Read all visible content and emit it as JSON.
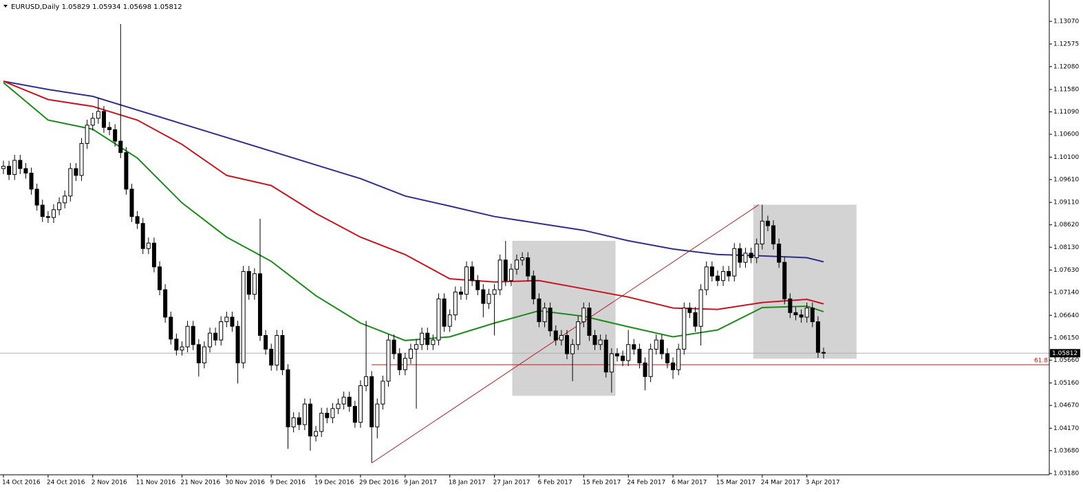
{
  "chart_data": {
    "type": "candlestick",
    "title": "EURUSD,Daily",
    "categories": [
      "14 Oct 2016",
      null,
      null,
      null,
      null,
      null,
      null,
      null,
      "24 Oct 2016",
      null,
      null,
      null,
      null,
      null,
      null,
      null,
      "2 Nov 2016",
      null,
      null,
      null,
      null,
      null,
      null,
      null,
      "11 Nov 2016",
      null,
      null,
      null,
      null,
      null,
      null,
      null,
      "21 Nov 2016",
      null,
      null,
      null,
      null,
      null,
      null,
      null,
      "30 Nov 2016",
      null,
      null,
      null,
      null,
      null,
      null,
      null,
      "9 Dec 2016",
      null,
      null,
      null,
      null,
      null,
      null,
      null,
      "19 Dec 2016",
      null,
      null,
      null,
      null,
      null,
      null,
      null,
      "29 Dec 2016",
      null,
      null,
      null,
      null,
      null,
      null,
      null,
      "9 Jan 2017",
      null,
      null,
      null,
      null,
      null,
      null,
      null,
      "18 Jan 2017",
      null,
      null,
      null,
      null,
      null,
      null,
      null,
      "27 Jan 2017",
      null,
      null,
      null,
      null,
      null,
      null,
      null,
      "6 Feb 2017",
      null,
      null,
      null,
      null,
      null,
      null,
      null,
      "15 Feb 2017",
      null,
      null,
      null,
      null,
      null,
      null,
      null,
      "24 Feb 2017",
      null,
      null,
      null,
      null,
      null,
      null,
      null,
      "6 Mar 2017",
      null,
      null,
      null,
      null,
      null,
      null,
      null,
      "15 Mar 2017",
      null,
      null,
      null,
      null,
      null,
      null,
      null,
      "24 Mar 2017",
      null,
      null,
      null,
      null,
      null,
      null,
      null,
      "3 Apr 2017",
      null,
      null,
      null
    ],
    "open": [
      1.0985,
      1.099,
      1.0972,
      1.1003,
      1.0985,
      1.0975,
      1.094,
      1.0905,
      1.088,
      1.0878,
      1.0895,
      1.091,
      1.0925,
      1.0985,
      1.097,
      1.104,
      1.108,
      1.1095,
      1.111,
      1.1075,
      1.107,
      1.1045,
      1.102,
      1.094,
      1.088,
      1.0865,
      1.081,
      1.0822,
      1.077,
      1.072,
      1.066,
      1.0612,
      1.0588,
      1.0595,
      1.064,
      1.06,
      1.056,
      1.0595,
      1.0625,
      1.061,
      1.065,
      1.066,
      1.064,
      1.056,
      1.076,
      1.071,
      1.0755,
      1.062,
      1.059,
      1.0555,
      1.062,
      1.0545,
      1.042,
      1.044,
      1.0425,
      1.047,
      1.04,
      1.041,
      1.045,
      1.044,
      1.046,
      1.047,
      1.0485,
      1.0465,
      1.043,
      1.051,
      1.053,
      1.042,
      1.047,
      1.052,
      1.061,
      1.058,
      1.0545,
      1.057,
      1.059,
      1.06,
      1.0625,
      1.06,
      1.061,
      1.07,
      1.064,
      1.0665,
      1.0715,
      1.071,
      1.077,
      1.074,
      1.072,
      1.069,
      1.071,
      1.072,
      1.0785,
      1.074,
      1.0765,
      1.0785,
      1.079,
      1.075,
      1.07,
      1.065,
      1.068,
      1.063,
      1.061,
      1.062,
      1.058,
      1.06,
      1.065,
      1.068,
      1.062,
      1.06,
      1.061,
      1.054,
      1.058,
      1.0575,
      1.0565,
      1.06,
      1.059,
      1.056,
      1.053,
      1.059,
      1.061,
      1.058,
      1.056,
      1.0545,
      1.059,
      1.068,
      1.067,
      1.064,
      1.072,
      1.077,
      1.075,
      1.074,
      1.076,
      1.075,
      1.081,
      1.078,
      1.08,
      1.079,
      1.082,
      1.087,
      1.086,
      1.082,
      1.078,
      1.07,
      1.067,
      1.0665,
      1.066,
      1.068,
      1.065,
      1.05829
    ],
    "high": [
      1.1002,
      1.1002,
      1.1015,
      1.1015,
      1.0997,
      1.0987,
      1.0952,
      1.0917,
      1.0892,
      1.0907,
      1.0922,
      1.0937,
      1.0997,
      1.0997,
      1.1052,
      1.1092,
      1.1107,
      1.114,
      1.1122,
      1.1087,
      1.1082,
      1.1301,
      1.1032,
      1.0952,
      1.0892,
      1.0877,
      1.0834,
      1.0834,
      1.0782,
      1.0732,
      1.0672,
      1.0624,
      1.0607,
      1.0652,
      1.0652,
      1.0612,
      1.0607,
      1.0637,
      1.0637,
      1.0662,
      1.0672,
      1.0672,
      1.0652,
      1.0772,
      1.0772,
      1.0767,
      1.0875,
      1.0632,
      1.0602,
      1.0632,
      1.0632,
      1.0557,
      1.0452,
      1.0452,
      1.0482,
      1.0482,
      1.0422,
      1.0462,
      1.0462,
      1.0472,
      1.0482,
      1.0497,
      1.0497,
      1.0477,
      1.0522,
      1.0652,
      1.0542,
      1.0482,
      1.0532,
      1.0622,
      1.0622,
      1.0592,
      1.0582,
      1.0602,
      1.0612,
      1.0637,
      1.0637,
      1.0622,
      1.0712,
      1.0712,
      1.0677,
      1.0727,
      1.0727,
      1.0782,
      1.0782,
      1.0752,
      1.0732,
      1.0722,
      1.0732,
      1.0797,
      1.0827,
      1.0777,
      1.0797,
      1.0802,
      1.0802,
      1.0762,
      1.0712,
      1.0692,
      1.0692,
      1.0642,
      1.0632,
      1.0632,
      1.0612,
      1.0662,
      1.0692,
      1.0692,
      1.0632,
      1.0622,
      1.0622,
      1.0592,
      1.0592,
      1.0587,
      1.0632,
      1.0612,
      1.0602,
      1.0572,
      1.0602,
      1.0622,
      1.0622,
      1.0592,
      1.0572,
      1.0602,
      1.0692,
      1.0692,
      1.0682,
      1.0732,
      1.0782,
      1.0782,
      1.0762,
      1.0772,
      1.0772,
      1.0822,
      1.0822,
      1.0812,
      1.0812,
      1.0832,
      1.0906,
      1.0882,
      1.0872,
      1.0832,
      1.0792,
      1.0712,
      1.0682,
      1.0677,
      1.0692,
      1.0692,
      1.0662,
      1.05934
    ],
    "low": [
      1.0973,
      1.096,
      1.096,
      1.0973,
      1.0963,
      1.0928,
      1.0893,
      1.0868,
      1.0866,
      1.0866,
      1.0883,
      1.0898,
      1.0913,
      1.0958,
      1.0958,
      1.1028,
      1.1068,
      1.1083,
      1.1063,
      1.1058,
      1.1033,
      1.1008,
      1.0928,
      1.0868,
      1.0853,
      1.0798,
      1.0798,
      1.0758,
      1.0708,
      1.0648,
      1.06,
      1.0576,
      1.0576,
      1.0583,
      1.0588,
      1.053,
      1.0548,
      1.0583,
      1.0598,
      1.0598,
      1.0638,
      1.0628,
      1.0515,
      1.0548,
      1.0698,
      1.0698,
      1.0608,
      1.0578,
      1.0543,
      1.0543,
      1.0533,
      1.0372,
      1.0408,
      1.0413,
      1.0413,
      1.0368,
      1.0388,
      1.0398,
      1.0428,
      1.0428,
      1.0448,
      1.0458,
      1.0453,
      1.0418,
      1.0418,
      1.0498,
      1.0342,
      1.0395,
      1.0458,
      1.0508,
      1.0568,
      1.0533,
      1.0533,
      1.0558,
      1.046,
      1.0588,
      1.0588,
      1.0588,
      1.0598,
      1.0628,
      1.0628,
      1.0653,
      1.0698,
      1.0698,
      1.0728,
      1.0708,
      1.066,
      1.0678,
      1.062,
      1.0708,
      1.0728,
      1.0728,
      1.0753,
      1.0773,
      1.0738,
      1.0688,
      1.0638,
      1.0638,
      1.0618,
      1.0598,
      1.0598,
      1.0568,
      1.052,
      1.0588,
      1.0638,
      1.0608,
      1.0588,
      1.0588,
      1.0528,
      1.0495,
      1.0563,
      1.0553,
      1.0553,
      1.0578,
      1.0548,
      1.05,
      1.0518,
      1.0578,
      1.0568,
      1.0548,
      1.0525,
      1.0533,
      1.0578,
      1.0658,
      1.0628,
      1.0598,
      1.0708,
      1.0738,
      1.0728,
      1.0728,
      1.0738,
      1.0738,
      1.0768,
      1.0768,
      1.0778,
      1.0778,
      1.0808,
      1.0848,
      1.0808,
      1.0768,
      1.0688,
      1.0658,
      1.0653,
      1.0648,
      1.0648,
      1.0638,
      1.0571,
      1.05698
    ],
    "close": [
      1.099,
      1.0972,
      1.1003,
      1.0985,
      1.0975,
      1.094,
      1.0905,
      1.088,
      1.0878,
      1.0895,
      1.091,
      1.0925,
      1.0985,
      1.097,
      1.104,
      1.108,
      1.1095,
      1.111,
      1.1075,
      1.107,
      1.1045,
      1.102,
      1.094,
      1.088,
      1.0865,
      1.081,
      1.0822,
      1.077,
      1.072,
      1.066,
      1.0612,
      1.0588,
      1.0595,
      1.064,
      1.06,
      1.056,
      1.0595,
      1.0625,
      1.061,
      1.065,
      1.066,
      1.064,
      1.056,
      1.076,
      1.071,
      1.0755,
      1.062,
      1.059,
      1.0555,
      1.062,
      1.0545,
      1.042,
      1.044,
      1.0425,
      1.047,
      1.04,
      1.041,
      1.045,
      1.044,
      1.046,
      1.047,
      1.0485,
      1.0465,
      1.043,
      1.051,
      1.053,
      1.042,
      1.047,
      1.052,
      1.061,
      1.058,
      1.0545,
      1.057,
      1.059,
      1.06,
      1.0625,
      1.06,
      1.061,
      1.07,
      1.064,
      1.0665,
      1.0715,
      1.071,
      1.077,
      1.074,
      1.072,
      1.069,
      1.071,
      1.072,
      1.0785,
      1.074,
      1.0765,
      1.0785,
      1.079,
      1.075,
      1.07,
      1.065,
      1.068,
      1.063,
      1.061,
      1.062,
      1.058,
      1.06,
      1.065,
      1.068,
      1.062,
      1.06,
      1.061,
      1.054,
      1.058,
      1.0575,
      1.0565,
      1.06,
      1.059,
      1.056,
      1.053,
      1.059,
      1.061,
      1.058,
      1.056,
      1.0545,
      1.059,
      1.068,
      1.067,
      1.064,
      1.072,
      1.077,
      1.075,
      1.074,
      1.076,
      1.075,
      1.081,
      1.078,
      1.08,
      1.079,
      1.082,
      1.087,
      1.086,
      1.082,
      1.078,
      1.07,
      1.067,
      1.0665,
      1.066,
      1.068,
      1.065,
      1.0583,
      1.05812
    ],
    "ylim": [
      1.03152,
      1.13537
    ],
    "yticks": [
      {
        "value": 1.1307,
        "label": "1.13070"
      },
      {
        "value": 1.12575,
        "label": "1.12575"
      },
      {
        "value": 1.1208,
        "label": "1.12080"
      },
      {
        "value": 1.1158,
        "label": "1.11580"
      },
      {
        "value": 1.1109,
        "label": "1.11090"
      },
      {
        "value": 1.106,
        "label": "1.10600"
      },
      {
        "value": 1.101,
        "label": "1.10100"
      },
      {
        "value": 1.0961,
        "label": "1.09610"
      },
      {
        "value": 1.0911,
        "label": "1.09110"
      },
      {
        "value": 1.0862,
        "label": "1.08620"
      },
      {
        "value": 1.0813,
        "label": "1.08130"
      },
      {
        "value": 1.0763,
        "label": "1.07630"
      },
      {
        "value": 1.0714,
        "label": "1.07140"
      },
      {
        "value": 1.0664,
        "label": "1.06640"
      },
      {
        "value": 1.0615,
        "label": "1.06150"
      },
      {
        "value": 1.0566,
        "label": "1.05660"
      },
      {
        "value": 1.0516,
        "label": "1.05160"
      },
      {
        "value": 1.0467,
        "label": "1.04670"
      },
      {
        "value": 1.0417,
        "label": "1.04170"
      },
      {
        "value": 1.0368,
        "label": "1.03680"
      },
      {
        "value": 1.0318,
        "label": "1.03180"
      }
    ],
    "moving_averages": [
      {
        "color": "#2e2e8c",
        "x": [
          0,
          8,
          16,
          24,
          32,
          40,
          48,
          56,
          64,
          72,
          80,
          88,
          96,
          104,
          112,
          120,
          128,
          136,
          144,
          147
        ],
        "values": [
          1.1176,
          1.1158,
          1.1143,
          1.1113,
          1.1083,
          1.1053,
          1.1023,
          1.0993,
          1.0963,
          1.0925,
          1.0903,
          1.088,
          1.0865,
          1.085,
          1.0827,
          1.0809,
          1.0797,
          1.0794,
          1.079,
          1.0781
        ]
      },
      {
        "color": "#c8141e",
        "x": [
          0,
          8,
          16,
          24,
          32,
          40,
          48,
          56,
          64,
          72,
          80,
          88,
          96,
          104,
          112,
          120,
          128,
          136,
          144,
          147
        ],
        "values": [
          1.1176,
          1.1136,
          1.1121,
          1.1091,
          1.1038,
          1.097,
          1.0948,
          1.0887,
          1.0835,
          1.0797,
          1.0744,
          1.0737,
          1.074,
          1.0722,
          1.0704,
          1.068,
          1.0677,
          1.0692,
          1.0699,
          1.0689
        ]
      },
      {
        "color": "#1a8a1a",
        "x": [
          0,
          8,
          16,
          24,
          32,
          40,
          48,
          56,
          64,
          72,
          80,
          88,
          96,
          104,
          112,
          120,
          128,
          136,
          144,
          147
        ],
        "values": [
          1.1173,
          1.1091,
          1.1071,
          1.1008,
          1.091,
          1.0835,
          1.0782,
          1.0707,
          1.0647,
          1.0609,
          1.0617,
          1.0647,
          1.0674,
          1.0662,
          1.0639,
          1.0617,
          1.0632,
          1.0681,
          1.0684,
          1.0672
        ]
      }
    ],
    "rectangles": [
      {
        "x": [
          91.2,
          109.7
        ],
        "y": [
          1.0827,
          1.0488
        ]
      },
      {
        "x": [
          134.4,
          152.9
        ],
        "y": [
          1.0906,
          1.0569
        ]
      }
    ],
    "trend_line": {
      "color": "#b22222",
      "x": [
        66,
        135.4
      ],
      "y": [
        1.0341,
        1.0906
      ]
    },
    "level": {
      "value": 1.0556,
      "label": "61.8",
      "x_start": 66,
      "color": "#d01010"
    }
  }
}
